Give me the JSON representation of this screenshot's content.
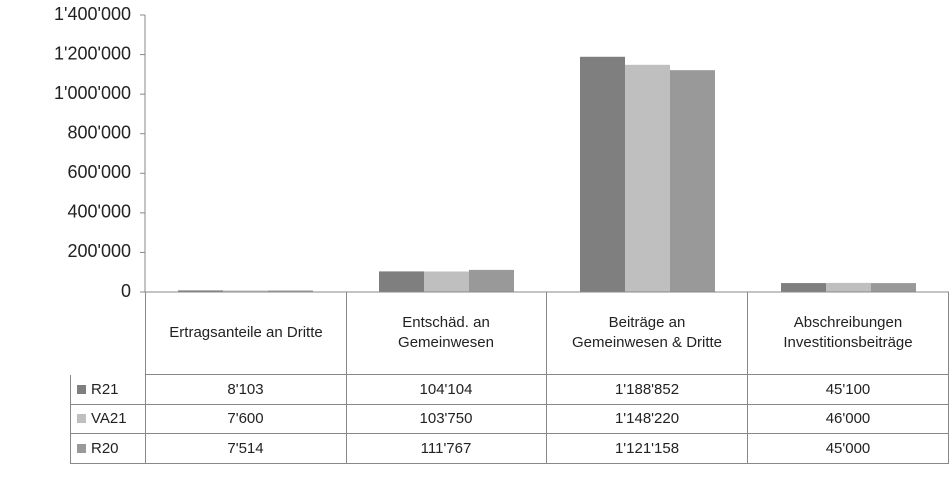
{
  "chart_data": {
    "type": "bar",
    "categories": [
      "Ertragsanteile an Dritte",
      "Entschäd. an Gemeinwesen",
      "Beiträge an Gemeinwesen & Dritte",
      "Abschreibungen Investitionsbeiträge"
    ],
    "series": [
      {
        "name": "R21",
        "color": "#7f7f7f",
        "values": [
          8103,
          104104,
          1188852,
          45100
        ],
        "value_labels": [
          "8'103",
          "104'104",
          "1'188'852",
          "45'100"
        ]
      },
      {
        "name": "VA21",
        "color": "#bfbfbf",
        "values": [
          7600,
          103750,
          1148220,
          46000
        ],
        "value_labels": [
          "7'600",
          "103'750",
          "1'148'220",
          "46'000"
        ]
      },
      {
        "name": "R20",
        "color": "#999999",
        "values": [
          7514,
          111767,
          1121158,
          45000
        ],
        "value_labels": [
          "7'514",
          "111'767",
          "1'121'158",
          "45'000"
        ]
      }
    ],
    "ylim": [
      0,
      1400000
    ],
    "yticks": [
      0,
      {
        "value": 200000,
        "label": "200'000"
      },
      {
        "value": 400000,
        "label": "400'000"
      },
      {
        "value": 600000,
        "label": "600'000"
      },
      {
        "value": 800000,
        "label": "800'000"
      },
      {
        "value": 1000000,
        "label": "1'000'000"
      },
      {
        "value": 1200000,
        "label": "1'200'000"
      },
      {
        "value": 1400000,
        "label": "1'400'000"
      }
    ],
    "grid": false,
    "legend": "table"
  }
}
